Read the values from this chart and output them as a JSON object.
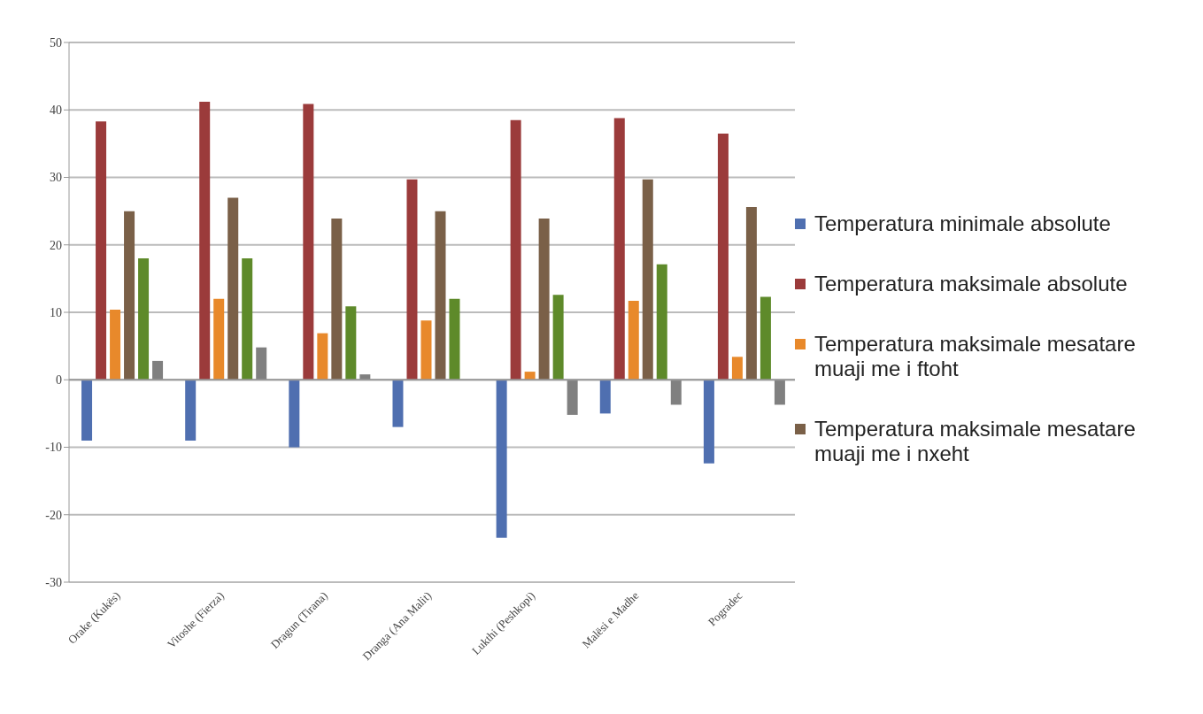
{
  "chart_data": {
    "type": "bar",
    "categories": [
      "Orake (Kukës)",
      "Vitoshe (Fierza)",
      "Dragun (Tirana)",
      "Dranga (Ana Malit)",
      "Lukthi (Peshkopi)",
      "Malësi e Madhe",
      "Pogradec"
    ],
    "series": [
      {
        "name": "Temperatura minimale absolute",
        "color": "#4f6fb0",
        "values": [
          -9,
          -9,
          -10,
          -7,
          -23.4,
          -5,
          -12.4
        ]
      },
      {
        "name": "Temperatura maksimale absolute",
        "color": "#9b3b3b",
        "values": [
          38.3,
          41.2,
          40.9,
          29.7,
          38.5,
          38.8,
          36.5
        ]
      },
      {
        "name": "Temperatura maksimale mesatare muaji me i ftoht",
        "color": "#e8892b",
        "values": [
          10.4,
          12,
          6.9,
          8.8,
          1.2,
          11.7,
          3.4
        ]
      },
      {
        "name": "Temperatura maksimale mesatare muaji me i nxeht",
        "color": "#7a6048",
        "values": [
          25,
          27,
          23.9,
          25,
          23.9,
          29.7,
          25.6
        ]
      },
      {
        "color": "#5e8a2a",
        "values": [
          18,
          18,
          10.9,
          12,
          12.6,
          17.1,
          12.3
        ]
      },
      {
        "color": "#808080",
        "values": [
          2.8,
          4.8,
          0.8,
          0,
          -5.2,
          -3.7,
          -3.7
        ]
      }
    ],
    "ylim": [
      -30,
      50
    ],
    "yticks": [
      -30,
      -20,
      -10,
      0,
      10,
      20,
      30,
      40,
      50
    ],
    "grid": "y",
    "legend": "right"
  }
}
